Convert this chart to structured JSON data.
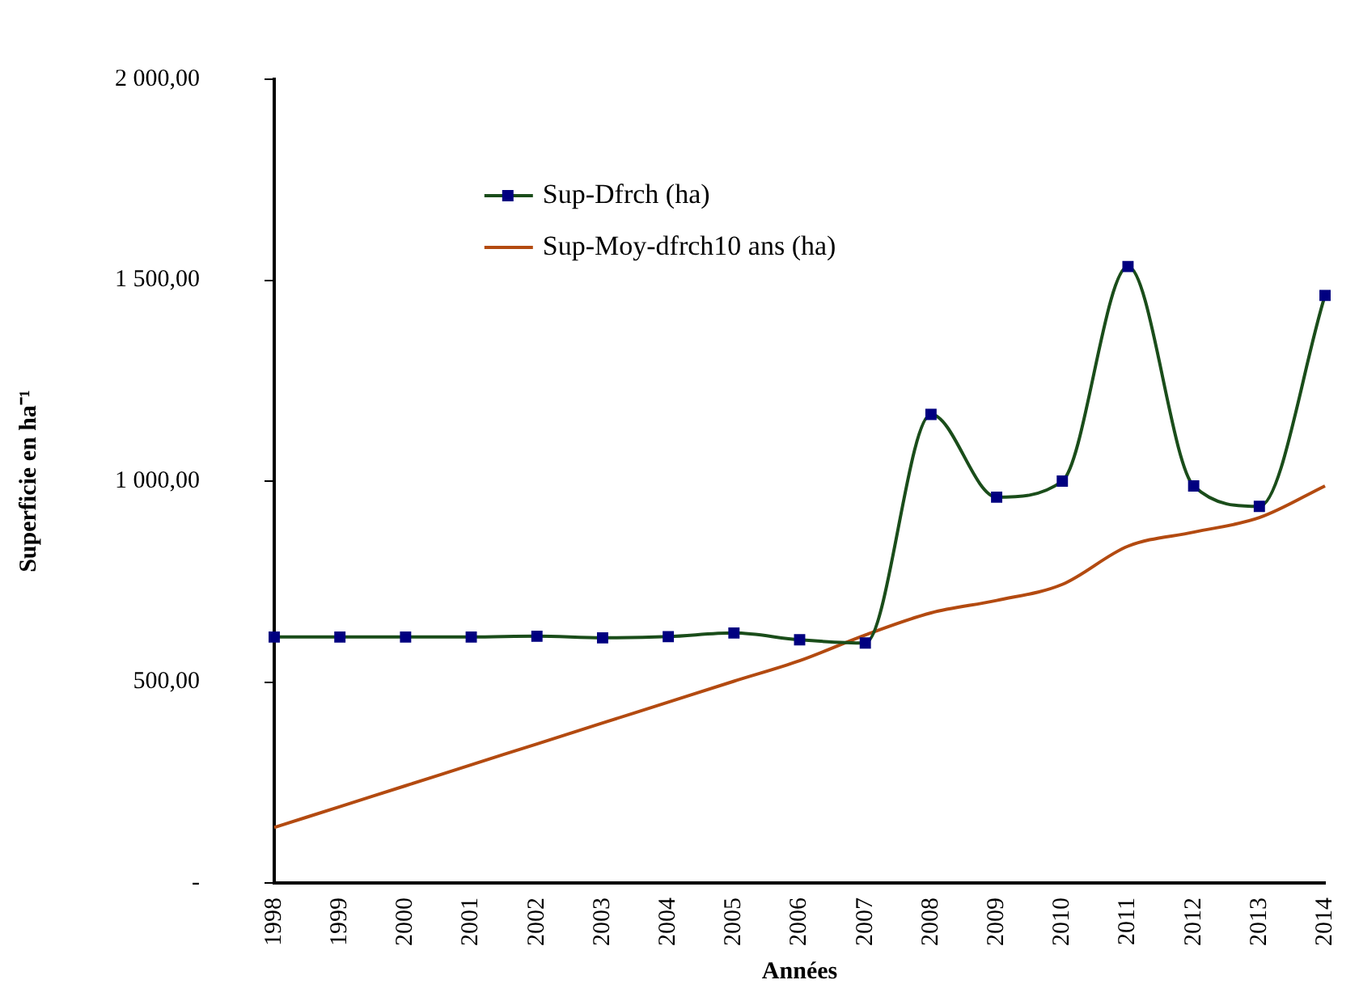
{
  "chart_data": {
    "type": "line",
    "xlabel": "Années",
    "ylabel": "Superficie en ha⁻¹",
    "categories": [
      "1998",
      "1999",
      "2000",
      "2001",
      "2002",
      "2003",
      "2004",
      "2005",
      "2006",
      "2007",
      "2008",
      "2009",
      "2010",
      "2011",
      "2012",
      "2013",
      "2014"
    ],
    "series": [
      {
        "name": "Sup-Dfrch (ha)",
        "color": "#1a4d1a",
        "marker": "square",
        "values": [
          612,
          612,
          612,
          612,
          614,
          610,
          613,
          622,
          605,
          597,
          1166,
          960,
          1000,
          1534,
          988,
          937,
          1462
        ]
      },
      {
        "name": "Sup-Moy-dfrch10 ans (ha)",
        "color": "#b34a10",
        "marker": "none",
        "values": [
          138,
          190,
          242,
          294,
          346,
          398,
          450,
          502,
          553,
          617,
          672,
          703,
          743,
          838,
          873,
          909,
          988
        ]
      }
    ],
    "ylim": [
      0,
      2000
    ],
    "yticks": [
      {
        "value": 0,
        "label": "-"
      },
      {
        "value": 500,
        "label": "500,00"
      },
      {
        "value": 1000,
        "label": "1 000,00"
      },
      {
        "value": 1500,
        "label": "1 500,00"
      },
      {
        "value": 2000,
        "label": "2 000,00"
      }
    ],
    "grid": false,
    "legend": "top left"
  }
}
